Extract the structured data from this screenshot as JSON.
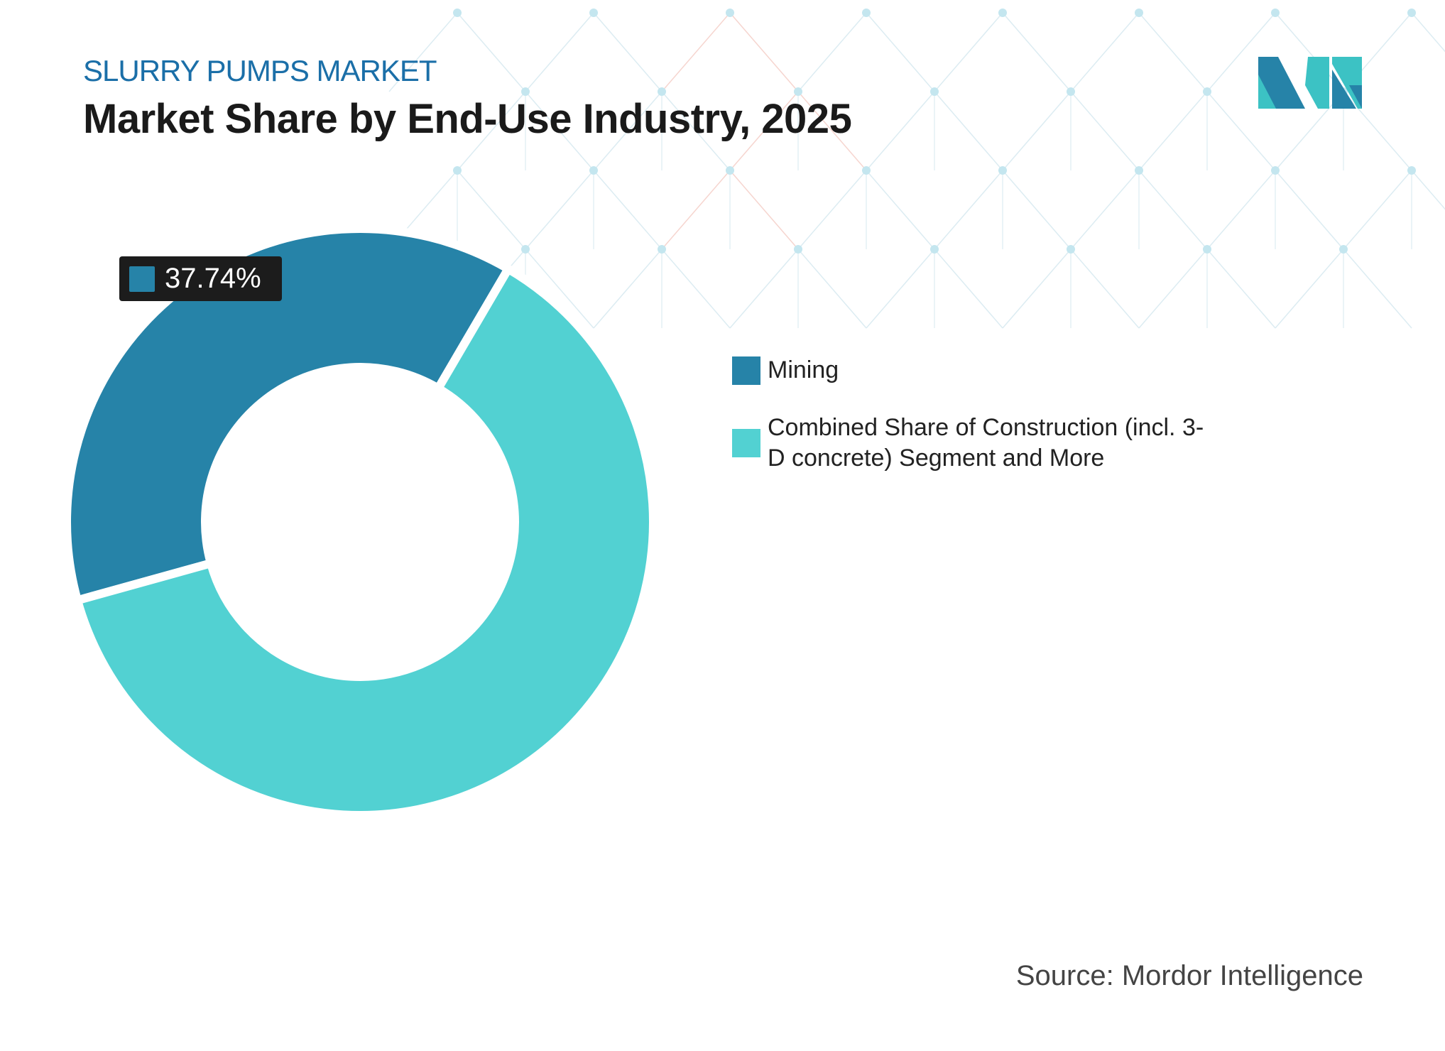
{
  "header": {
    "kicker": "SLURRY PUMPS MARKET",
    "title": "Market Share by End-Use Industry, 2025"
  },
  "colors": {
    "mining": "#2683a8",
    "other": "#52d1d2",
    "kicker": "#1b6fa8"
  },
  "chart_data": {
    "type": "pie",
    "subtype": "donut",
    "title": "Market Share by End-Use Industry, 2025",
    "series": [
      {
        "name": "Mining",
        "value": 37.74,
        "color": "#2683a8"
      },
      {
        "name": "Combined Share of Construction (incl. 3-D concrete) Segment and More",
        "value": 62.26,
        "color": "#52d1d2"
      }
    ],
    "data_labels": [
      {
        "series": "Mining",
        "text": "37.74%"
      }
    ],
    "legend_position": "right"
  },
  "source": "Source: Mordor Intelligence",
  "logo_alt": "Mordor Intelligence"
}
